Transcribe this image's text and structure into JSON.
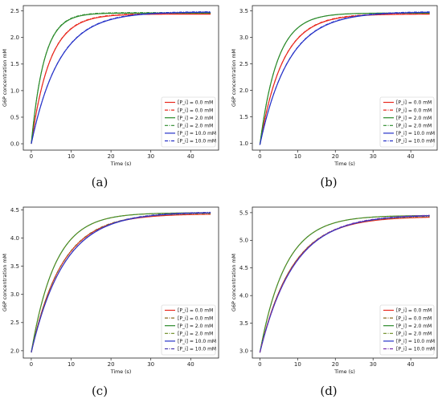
{
  "chart_data": [
    {
      "type": "line",
      "caption": "(a)",
      "xlabel": "Time (s)",
      "ylabel": "G6P concentration mM",
      "xlim": [
        -2,
        47
      ],
      "ylim": [
        -0.12,
        2.6
      ],
      "xticks": [
        0,
        10,
        20,
        30,
        40
      ],
      "yticks": [
        0.0,
        0.5,
        1.0,
        1.5,
        2.0,
        2.5
      ],
      "ytick_labels": [
        "0.0",
        "0.5",
        "1.0",
        "1.5",
        "2.0",
        "2.5"
      ],
      "legend_position": "lower right",
      "series": [
        {
          "name": "[P_i] = 0.0 mM",
          "color": "#e8281e",
          "style": "solid",
          "y0": 0.0,
          "yinf": 2.44,
          "tau": 4.6
        },
        {
          "name": "[P_i] = 0.0 mM",
          "color": "#e8281e",
          "style": "dashdot",
          "y0": 0.0,
          "yinf": 2.45,
          "tau": 4.6
        },
        {
          "name": "[P_i] = 2.0 mM",
          "color": "#2a8a2a",
          "style": "solid",
          "y0": 0.0,
          "yinf": 2.46,
          "tau": 3.2
        },
        {
          "name": "[P_i] = 2.0 mM",
          "color": "#2a8a2a",
          "style": "dashdot",
          "y0": 0.0,
          "yinf": 2.47,
          "tau": 3.2
        },
        {
          "name": "[P_i] = 10.0 mM",
          "color": "#2632c8",
          "style": "solid",
          "y0": 0.0,
          "yinf": 2.48,
          "tau": 7.0
        },
        {
          "name": "[P_i] = 10.0 mM",
          "color": "#2632c8",
          "style": "dashdot",
          "y0": 0.0,
          "yinf": 2.49,
          "tau": 7.0
        }
      ]
    },
    {
      "type": "line",
      "caption": "(b)",
      "xlabel": "Time (s)",
      "ylabel": "G6P concentration mM",
      "xlim": [
        -2,
        47
      ],
      "ylim": [
        0.87,
        3.6
      ],
      "xticks": [
        0,
        10,
        20,
        30,
        40
      ],
      "yticks": [
        1.0,
        1.5,
        2.0,
        2.5,
        3.0,
        3.5
      ],
      "ytick_labels": [
        "1.0",
        "1.5",
        "2.0",
        "2.5",
        "3.0",
        "3.5"
      ],
      "legend_position": "lower right",
      "series": [
        {
          "name": "[P_i] = 0.0 mM",
          "color": "#e8281e",
          "style": "solid",
          "y0": 0.97,
          "yinf": 3.44,
          "tau": 6.0
        },
        {
          "name": "[P_i] = 0.0 mM",
          "color": "#e8281e",
          "style": "dashdot",
          "y0": 0.97,
          "yinf": 3.45,
          "tau": 6.0
        },
        {
          "name": "[P_i] = 2.0 mM",
          "color": "#2a8a2a",
          "style": "solid",
          "y0": 0.97,
          "yinf": 3.46,
          "tau": 4.6
        },
        {
          "name": "[P_i] = 2.0 mM",
          "color": "#2a8a2a",
          "style": "dashdot",
          "y0": 0.97,
          "yinf": 3.46,
          "tau": 4.6
        },
        {
          "name": "[P_i] = 10.0 mM",
          "color": "#2632c8",
          "style": "solid",
          "y0": 0.97,
          "yinf": 3.48,
          "tau": 7.6
        },
        {
          "name": "[P_i] = 10.0 mM",
          "color": "#2632c8",
          "style": "dashdot",
          "y0": 0.97,
          "yinf": 3.49,
          "tau": 7.6
        }
      ]
    },
    {
      "type": "line",
      "caption": "(c)",
      "xlabel": "Time (s)",
      "ylabel": "G6P concentration mM",
      "xlim": [
        -2,
        47
      ],
      "ylim": [
        1.87,
        4.55
      ],
      "xticks": [
        0,
        10,
        20,
        30,
        40
      ],
      "yticks": [
        2.0,
        2.5,
        3.0,
        3.5,
        4.0,
        4.5
      ],
      "ytick_labels": [
        "2.0",
        "2.5",
        "3.0",
        "3.5",
        "4.0",
        "4.5"
      ],
      "legend_position": "lower right",
      "series": [
        {
          "name": "[P_i] = 0.0 mM",
          "color": "#e8281e",
          "style": "solid",
          "y0": 1.97,
          "yinf": 4.43,
          "tau": 7.6
        },
        {
          "name": "[P_i] = 0.0 mM",
          "color": "#8a6a20",
          "style": "dashdot",
          "y0": 1.97,
          "yinf": 4.44,
          "tau": 7.6
        },
        {
          "name": "[P_i] = 2.0 mM",
          "color": "#2a8a2a",
          "style": "solid",
          "y0": 1.97,
          "yinf": 4.45,
          "tau": 6.0
        },
        {
          "name": "[P_i] = 2.0 mM",
          "color": "#6a8a20",
          "style": "dashdot",
          "y0": 1.97,
          "yinf": 4.45,
          "tau": 6.0
        },
        {
          "name": "[P_i] = 10.0 mM",
          "color": "#2632c8",
          "style": "solid",
          "y0": 1.97,
          "yinf": 4.46,
          "tau": 8.2
        },
        {
          "name": "[P_i] = 10.0 mM",
          "color": "#4a3ab0",
          "style": "dashdot",
          "y0": 1.97,
          "yinf": 4.47,
          "tau": 8.2
        }
      ]
    },
    {
      "type": "line",
      "caption": "(d)",
      "xlabel": "Time (s)",
      "ylabel": "G6P concentration mM",
      "xlim": [
        -2,
        47
      ],
      "ylim": [
        2.87,
        5.6
      ],
      "xticks": [
        0,
        10,
        20,
        30,
        40
      ],
      "yticks": [
        3.0,
        3.5,
        4.0,
        4.5,
        5.0,
        5.5
      ],
      "ytick_labels": [
        "3.0",
        "3.5",
        "4.0",
        "4.5",
        "5.0",
        "5.5"
      ],
      "legend_position": "lower right",
      "series": [
        {
          "name": "[P_i] = 0.0 mM",
          "color": "#e8281e",
          "style": "solid",
          "y0": 2.97,
          "yinf": 5.43,
          "tau": 8.6
        },
        {
          "name": "[P_i] = 0.0 mM",
          "color": "#8a6a20",
          "style": "dashdot",
          "y0": 2.97,
          "yinf": 5.44,
          "tau": 8.6
        },
        {
          "name": "[P_i] = 2.0 mM",
          "color": "#2a8a2a",
          "style": "solid",
          "y0": 2.97,
          "yinf": 5.45,
          "tau": 6.8
        },
        {
          "name": "[P_i] = 2.0 mM",
          "color": "#6a8a20",
          "style": "dashdot",
          "y0": 2.97,
          "yinf": 5.45,
          "tau": 6.8
        },
        {
          "name": "[P_i] = 10.0 mM",
          "color": "#2632c8",
          "style": "solid",
          "y0": 2.97,
          "yinf": 5.46,
          "tau": 9.0
        },
        {
          "name": "[P_i] = 10.0 mM",
          "color": "#7a30b0",
          "style": "dashdot",
          "y0": 2.97,
          "yinf": 5.47,
          "tau": 9.0
        }
      ]
    }
  ]
}
